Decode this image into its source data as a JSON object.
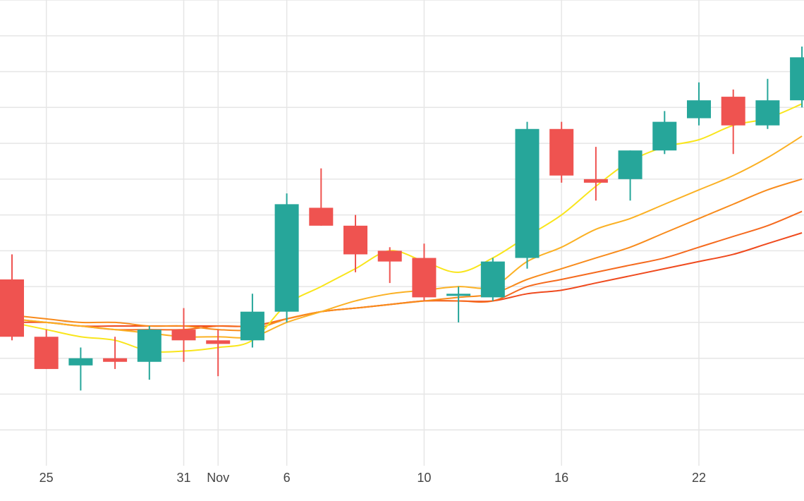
{
  "chart_data": {
    "type": "candlestick",
    "x_tick_labels": [
      "25",
      "31",
      "Nov",
      "6",
      "10",
      "16",
      "22"
    ],
    "x_tick_index": [
      1,
      5,
      6,
      8,
      12,
      16,
      20
    ],
    "y_range": [
      0,
      13
    ],
    "grid": true,
    "colors": {
      "up": "#26a69a",
      "down": "#ef5350",
      "grid": "#e6e6e6",
      "ma_colors": [
        "#f9e51b",
        "#fbb124",
        "#f88b1c",
        "#f56a1e",
        "#ef4a1e"
      ]
    },
    "candles": [
      {
        "open": 5.2,
        "high": 5.9,
        "low": 3.5,
        "close": 3.6
      },
      {
        "open": 3.6,
        "high": 3.8,
        "low": 2.7,
        "close": 2.7
      },
      {
        "open": 2.8,
        "high": 3.3,
        "low": 2.1,
        "close": 3.0
      },
      {
        "open": 3.0,
        "high": 3.6,
        "low": 2.7,
        "close": 2.9
      },
      {
        "open": 2.9,
        "high": 3.9,
        "low": 2.4,
        "close": 3.8
      },
      {
        "open": 3.8,
        "high": 4.4,
        "low": 2.9,
        "close": 3.5
      },
      {
        "open": 3.5,
        "high": 3.8,
        "low": 2.5,
        "close": 3.4
      },
      {
        "open": 3.5,
        "high": 4.8,
        "low": 3.3,
        "close": 4.3
      },
      {
        "open": 4.3,
        "high": 7.6,
        "low": 4.0,
        "close": 7.3
      },
      {
        "open": 7.2,
        "high": 8.3,
        "low": 6.7,
        "close": 6.7
      },
      {
        "open": 6.7,
        "high": 7.0,
        "low": 5.4,
        "close": 5.9
      },
      {
        "open": 6.0,
        "high": 6.1,
        "low": 5.1,
        "close": 5.7
      },
      {
        "open": 5.8,
        "high": 6.2,
        "low": 4.6,
        "close": 4.7
      },
      {
        "open": 4.8,
        "high": 5.0,
        "low": 4.0,
        "close": 4.8
      },
      {
        "open": 4.7,
        "high": 5.8,
        "low": 4.6,
        "close": 5.7
      },
      {
        "open": 5.8,
        "high": 9.6,
        "low": 5.5,
        "close": 9.4
      },
      {
        "open": 9.4,
        "high": 9.6,
        "low": 7.9,
        "close": 8.1
      },
      {
        "open": 8.0,
        "high": 8.9,
        "low": 7.4,
        "close": 7.9
      },
      {
        "open": 8.0,
        "high": 8.8,
        "low": 7.4,
        "close": 8.8
      },
      {
        "open": 8.8,
        "high": 9.9,
        "low": 8.7,
        "close": 9.6
      },
      {
        "open": 9.7,
        "high": 10.7,
        "low": 9.5,
        "close": 10.2
      },
      {
        "open": 10.3,
        "high": 10.5,
        "low": 8.7,
        "close": 9.5
      },
      {
        "open": 9.5,
        "high": 10.8,
        "low": 9.4,
        "close": 10.2
      },
      {
        "open": 10.2,
        "high": 11.7,
        "low": 10.0,
        "close": 11.4
      }
    ],
    "moving_averages": [
      {
        "values": [
          4.0,
          3.8,
          3.6,
          3.5,
          3.2,
          3.2,
          3.3,
          3.5,
          4.5,
          5.0,
          5.5,
          6.0,
          5.7,
          5.4,
          5.8,
          6.4,
          7.0,
          7.8,
          8.5,
          8.9,
          9.1,
          9.5,
          9.7,
          10.1
        ]
      },
      {
        "values": [
          4.1,
          4.0,
          3.9,
          3.8,
          3.7,
          3.6,
          3.6,
          3.6,
          4.0,
          4.3,
          4.6,
          4.8,
          4.9,
          5.0,
          5.0,
          5.7,
          6.1,
          6.6,
          6.9,
          7.3,
          7.7,
          8.1,
          8.6,
          9.2
        ]
      },
      {
        "values": [
          4.2,
          4.1,
          4.0,
          4.0,
          3.9,
          3.9,
          3.8,
          3.8,
          4.1,
          4.3,
          4.4,
          4.5,
          4.6,
          4.7,
          4.8,
          5.2,
          5.5,
          5.8,
          6.1,
          6.5,
          6.9,
          7.3,
          7.7,
          8.0
        ]
      },
      {
        "values": [
          4.1,
          4.0,
          3.9,
          3.8,
          3.8,
          3.8,
          3.9,
          3.9,
          4.1,
          4.3,
          4.4,
          4.5,
          4.6,
          4.6,
          4.6,
          5.0,
          5.2,
          5.4,
          5.6,
          5.8,
          6.1,
          6.4,
          6.7,
          7.1
        ]
      },
      {
        "values": [
          4.0,
          4.0,
          3.9,
          3.9,
          3.9,
          3.9,
          3.9,
          3.9,
          4.1,
          4.3,
          4.4,
          4.5,
          4.6,
          4.6,
          4.6,
          4.8,
          4.9,
          5.1,
          5.3,
          5.5,
          5.7,
          5.9,
          6.2,
          6.5
        ]
      }
    ]
  }
}
